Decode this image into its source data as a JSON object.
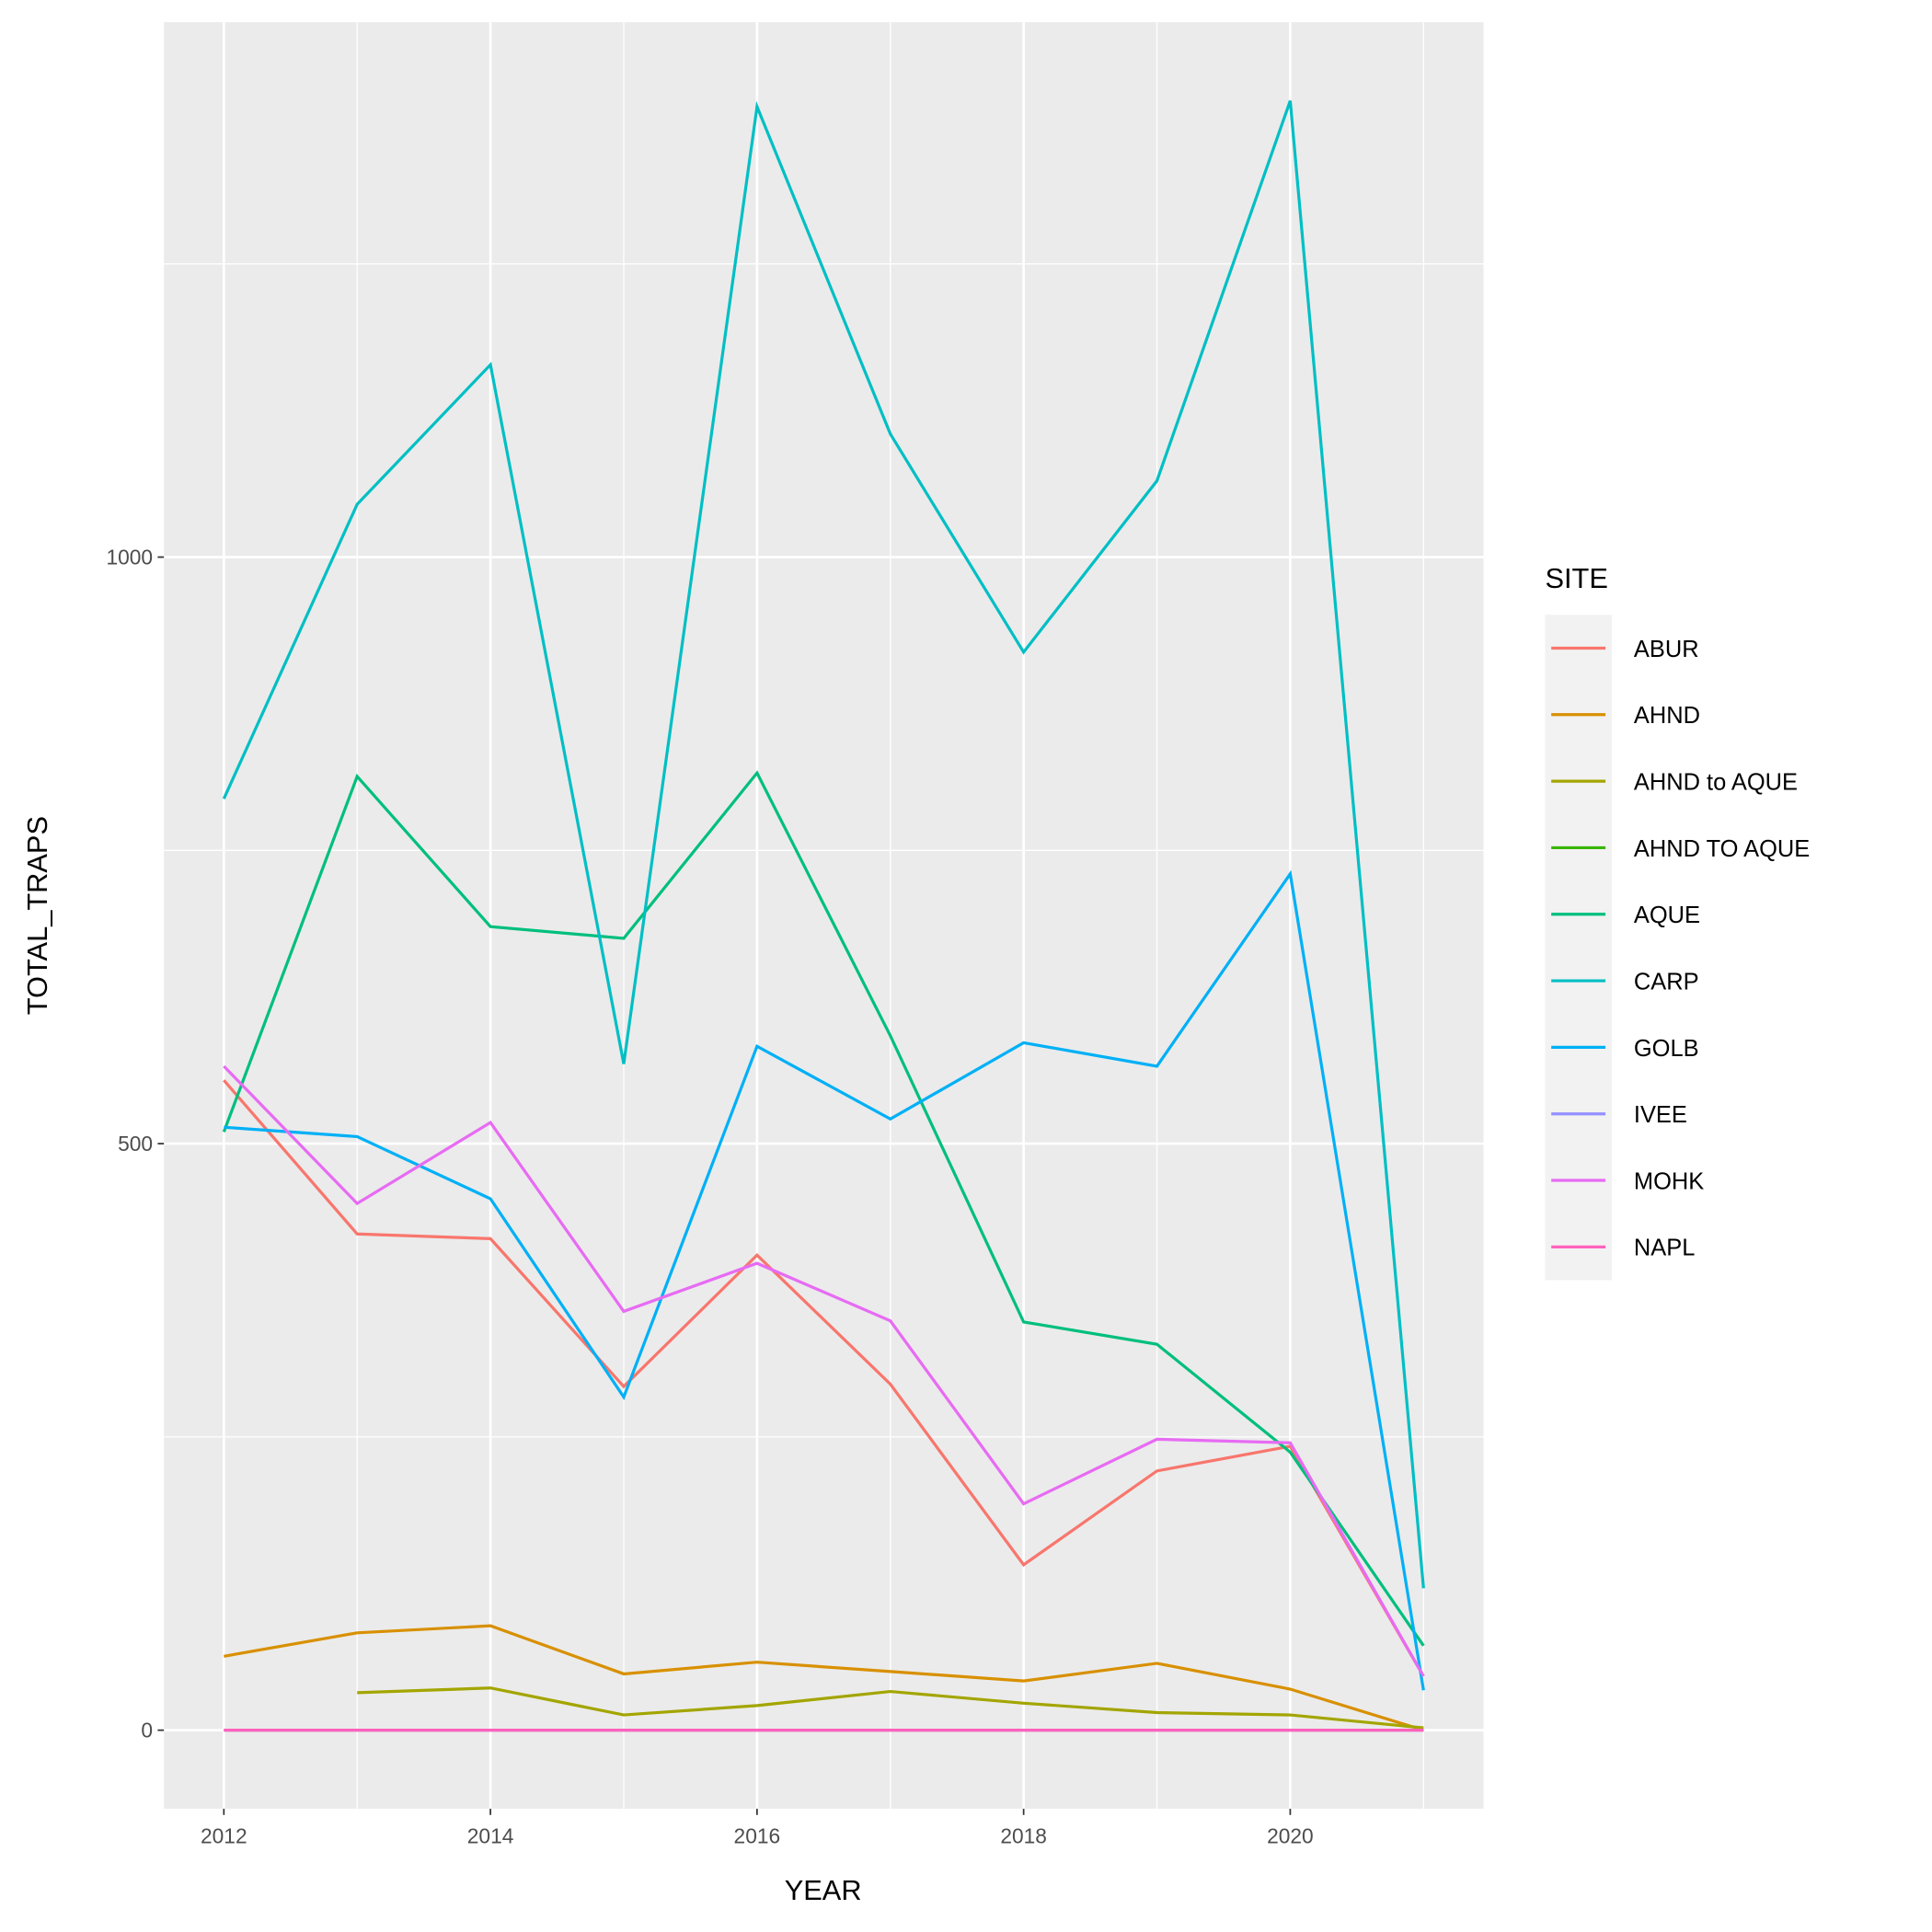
{
  "chart_data": {
    "type": "line",
    "title": "",
    "xlabel": "YEAR",
    "ylabel": "TOTAL_TRAPS",
    "xlim": [
      2011.55,
      2021.45
    ],
    "ylim": [
      -67,
      1456
    ],
    "x_ticks": [
      2012,
      2014,
      2016,
      2018,
      2020
    ],
    "y_ticks": [
      0,
      500,
      1000
    ],
    "grid": true,
    "legend": {
      "title": "SITE",
      "placement": "right"
    },
    "series": [
      {
        "name": "ABUR",
        "color": "#F8766D",
        "x": [
          2012,
          2013,
          2014,
          2015,
          2016,
          2017,
          2018,
          2019,
          2020,
          2021
        ],
        "values": [
          554,
          423,
          419,
          293,
          405,
          295,
          141,
          221,
          242,
          46
        ]
      },
      {
        "name": "AHND",
        "color": "#D89000",
        "x": [
          2012,
          2013,
          2014,
          2015,
          2016,
          2017,
          2018,
          2019,
          2020,
          2021
        ],
        "values": [
          63,
          83,
          89,
          48,
          58,
          50,
          42,
          57,
          35,
          0
        ]
      },
      {
        "name": "AHND to AQUE",
        "color": "#A3A500",
        "x": [
          2013,
          2014,
          2015,
          2016,
          2017,
          2018,
          2019,
          2020,
          2021
        ],
        "values": [
          32,
          36,
          13,
          21,
          33,
          23,
          15,
          13,
          2
        ]
      },
      {
        "name": "AHND TO AQUE",
        "color": "#39B600",
        "x": [
          2021
        ],
        "values": [
          0
        ]
      },
      {
        "name": "AQUE",
        "color": "#00BF7D",
        "x": [
          2012,
          2013,
          2014,
          2015,
          2016,
          2017,
          2018,
          2019,
          2020,
          2021
        ],
        "values": [
          510,
          813,
          685,
          675,
          816,
          592,
          348,
          329,
          237,
          72
        ]
      },
      {
        "name": "CARP",
        "color": "#00BFC4",
        "x": [
          2012,
          2013,
          2014,
          2015,
          2016,
          2017,
          2018,
          2019,
          2020,
          2021
        ],
        "values": [
          794,
          1045,
          1164,
          568,
          1384,
          1105,
          919,
          1065,
          1389,
          121
        ]
      },
      {
        "name": "GOLB",
        "color": "#00B0F6",
        "x": [
          2012,
          2013,
          2014,
          2015,
          2016,
          2017,
          2018,
          2019,
          2020,
          2021
        ],
        "values": [
          514,
          506,
          453,
          284,
          583,
          521,
          586,
          566,
          730,
          34
        ]
      },
      {
        "name": "IVEE",
        "color": "#9590FF",
        "x": [
          2012,
          2021
        ],
        "values": [
          0,
          0
        ]
      },
      {
        "name": "MOHK",
        "color": "#E76BF3",
        "x": [
          2012,
          2013,
          2014,
          2015,
          2016,
          2017,
          2018,
          2019,
          2020,
          2021
        ],
        "values": [
          566,
          449,
          518,
          357,
          398,
          349,
          193,
          248,
          245,
          46
        ]
      },
      {
        "name": "NAPL",
        "color": "#FF62BC",
        "x": [
          2012,
          2013,
          2014,
          2015,
          2016,
          2017,
          2018,
          2019,
          2020,
          2021
        ],
        "values": [
          0,
          0,
          0,
          0,
          0,
          0,
          0,
          0,
          0,
          0
        ]
      }
    ]
  }
}
